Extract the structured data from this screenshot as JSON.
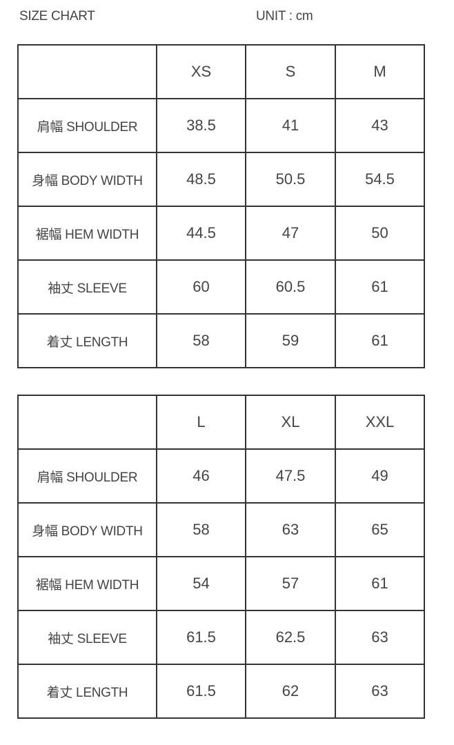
{
  "title": "SIZE CHART",
  "unit": "UNIT : cm",
  "tables": [
    {
      "sizes": [
        "XS",
        "S",
        "M"
      ],
      "rows": [
        {
          "label": "肩幅 SHOULDER",
          "values": [
            "38.5",
            "41",
            "43"
          ]
        },
        {
          "label": "身幅 BODY WIDTH",
          "values": [
            "48.5",
            "50.5",
            "54.5"
          ]
        },
        {
          "label": "裾幅 HEM WIDTH",
          "values": [
            "44.5",
            "47",
            "50"
          ]
        },
        {
          "label": "袖丈 SLEEVE",
          "values": [
            "60",
            "60.5",
            "61"
          ]
        },
        {
          "label": "着丈 LENGTH",
          "values": [
            "58",
            "59",
            "61"
          ]
        }
      ]
    },
    {
      "sizes": [
        "L",
        "XL",
        "XXL"
      ],
      "rows": [
        {
          "label": "肩幅 SHOULDER",
          "values": [
            "46",
            "47.5",
            "49"
          ]
        },
        {
          "label": "身幅 BODY WIDTH",
          "values": [
            "58",
            "63",
            "65"
          ]
        },
        {
          "label": "裾幅 HEM WIDTH",
          "values": [
            "54",
            "57",
            "61"
          ]
        },
        {
          "label": "袖丈 SLEEVE",
          "values": [
            "61.5",
            "62.5",
            "63"
          ]
        },
        {
          "label": "着丈 LENGTH",
          "values": [
            "61.5",
            "62",
            "63"
          ]
        }
      ]
    }
  ]
}
